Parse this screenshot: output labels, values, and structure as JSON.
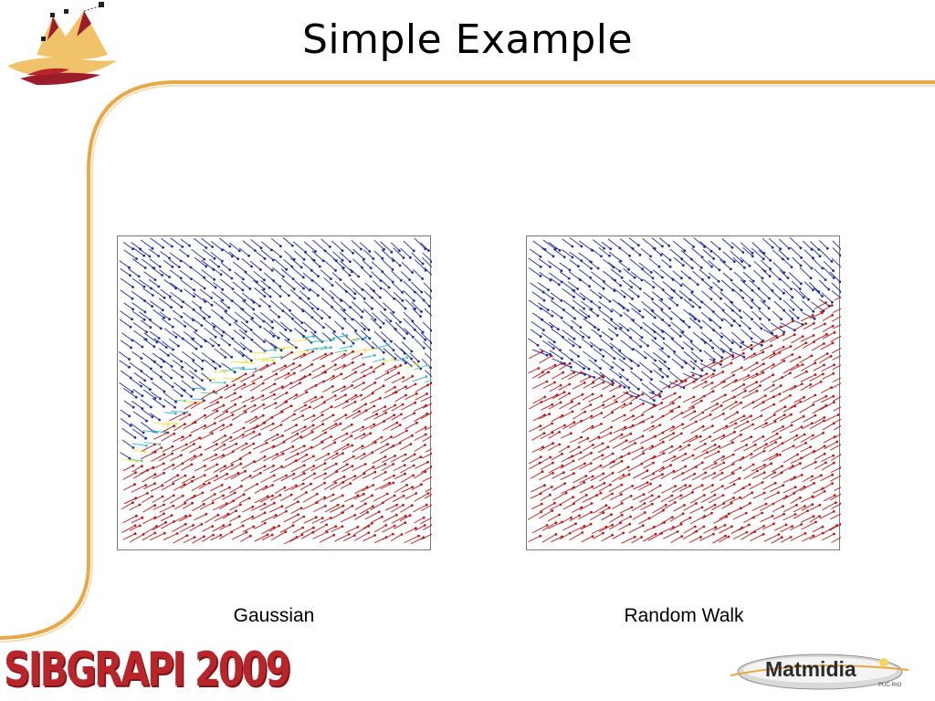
{
  "slide": {
    "title": "Simple Example",
    "accent_color": "#e8a84a"
  },
  "figures": [
    {
      "caption": "Gaussian",
      "blue_color": "#1f2d9c",
      "red_color": "#b81c1c",
      "boundary_colors": [
        "#36b0d8",
        "#5cc7a0",
        "#f2e24a"
      ]
    },
    {
      "caption": "Random Walk",
      "blue_color": "#1f2d9c",
      "red_color": "#b81c1c"
    }
  ],
  "footer": {
    "conference_logo": "SIBGRAPI 2009",
    "sponsor_logo": "Matmidia",
    "sponsor_sub": "PUC-RIO"
  }
}
